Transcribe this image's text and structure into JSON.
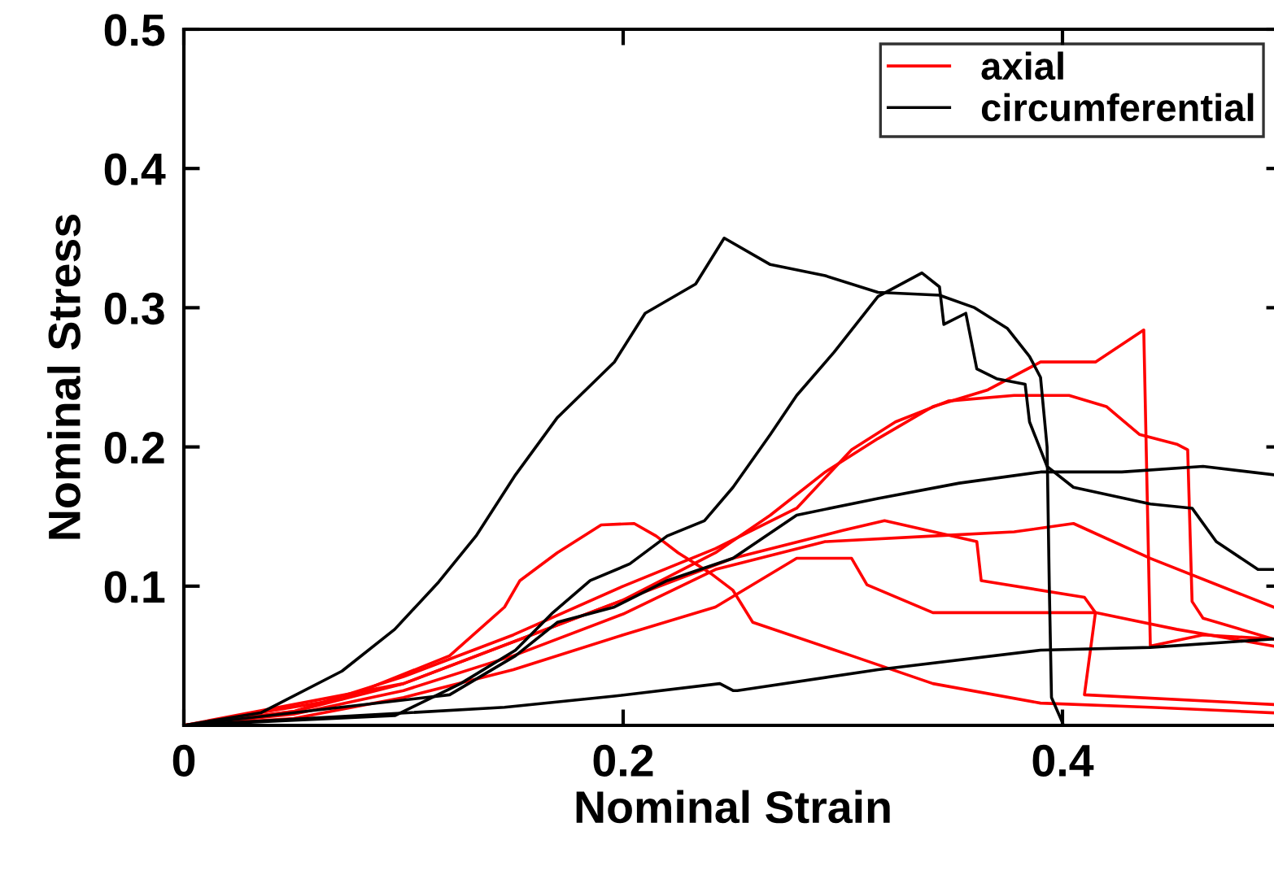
{
  "chart_data": {
    "type": "line",
    "xlabel": "Nominal Strain",
    "ylabel": "Nominal Stress",
    "xlim": [
      0,
      0.5
    ],
    "ylim": [
      0,
      0.5
    ],
    "xticks": [
      0,
      0.2,
      0.4
    ],
    "yticks": [
      0.1,
      0.2,
      0.3,
      0.4,
      0.5
    ],
    "grid": false,
    "legend": "top right",
    "marker": "none",
    "line_style": "solid",
    "series": [
      {
        "name": "axial",
        "color": "#ff0000",
        "x": [
          0,
          0.072,
          0.121,
          0.146,
          0.153,
          0.17,
          0.19,
          0.205,
          0.215,
          0.225,
          0.24,
          0.25,
          0.259,
          0.304,
          0.341,
          0.39,
          0.44,
          0.496
        ],
        "values": [
          0,
          0.019,
          0.05,
          0.085,
          0.104,
          0.124,
          0.144,
          0.145,
          0.136,
          0.124,
          0.109,
          0.097,
          0.074,
          0.05,
          0.03,
          0.016,
          0.013,
          0.009
        ]
      },
      {
        "color": "#ff0000",
        "x": [
          0,
          0.05,
          0.1,
          0.15,
          0.2,
          0.242,
          0.267,
          0.292,
          0.316,
          0.341,
          0.366,
          0.39,
          0.415,
          0.437,
          0.44,
          0.464,
          0.496
        ],
        "values": [
          0,
          0.01,
          0.03,
          0.06,
          0.09,
          0.124,
          0.151,
          0.182,
          0.206,
          0.229,
          0.241,
          0.261,
          0.261,
          0.284,
          0.057,
          0.065,
          0.062
        ]
      },
      {
        "color": "#ff0000",
        "x": [
          0,
          0.05,
          0.1,
          0.15,
          0.2,
          0.242,
          0.279,
          0.304,
          0.324,
          0.348,
          0.378,
          0.403,
          0.42,
          0.435,
          0.452,
          0.457,
          0.459,
          0.464,
          0.496
        ],
        "values": [
          0,
          0.01,
          0.035,
          0.065,
          0.1,
          0.127,
          0.156,
          0.198,
          0.218,
          0.233,
          0.237,
          0.237,
          0.229,
          0.209,
          0.202,
          0.198,
          0.089,
          0.077,
          0.062
        ]
      },
      {
        "color": "#ff0000",
        "x": [
          0,
          0.05,
          0.1,
          0.15,
          0.2,
          0.242,
          0.292,
          0.341,
          0.378,
          0.405,
          0.44,
          0.496
        ],
        "values": [
          0,
          0.008,
          0.025,
          0.05,
          0.08,
          0.112,
          0.132,
          0.136,
          0.139,
          0.145,
          0.12,
          0.085
        ]
      },
      {
        "color": "#ff0000",
        "x": [
          0,
          0.1,
          0.2,
          0.25,
          0.3,
          0.319,
          0.361,
          0.363,
          0.41,
          0.415,
          0.41,
          0.496
        ],
        "values": [
          0,
          0.03,
          0.09,
          0.12,
          0.14,
          0.147,
          0.132,
          0.104,
          0.092,
          0.081,
          0.022,
          0.015
        ]
      },
      {
        "color": "#ff0000",
        "x": [
          0,
          0.05,
          0.1,
          0.15,
          0.2,
          0.242,
          0.279,
          0.304,
          0.311,
          0.341,
          0.378,
          0.415,
          0.452,
          0.496
        ],
        "values": [
          0,
          0.005,
          0.02,
          0.04,
          0.065,
          0.085,
          0.12,
          0.12,
          0.101,
          0.081,
          0.081,
          0.081,
          0.069,
          0.057
        ]
      },
      {
        "name": "circumferential",
        "color": "#000000",
        "x": [
          0,
          0.035,
          0.072,
          0.096,
          0.116,
          0.133,
          0.151,
          0.17,
          0.196,
          0.21,
          0.233,
          0.246,
          0.267,
          0.292,
          0.316,
          0.344,
          0.36,
          0.375,
          0.385,
          0.39,
          0.393,
          0.394,
          0.395,
          0.4
        ],
        "values": [
          0,
          0.009,
          0.039,
          0.069,
          0.103,
          0.136,
          0.18,
          0.221,
          0.261,
          0.296,
          0.317,
          0.35,
          0.331,
          0.323,
          0.311,
          0.309,
          0.3,
          0.285,
          0.265,
          0.25,
          0.2,
          0.1,
          0.02,
          0.002
        ]
      },
      {
        "color": "#000000",
        "x": [
          0,
          0.096,
          0.126,
          0.151,
          0.168,
          0.185,
          0.203,
          0.22,
          0.237,
          0.25,
          0.267,
          0.279,
          0.296,
          0.316,
          0.336,
          0.344,
          0.346,
          0.356,
          0.361,
          0.37,
          0.383,
          0.385,
          0.393,
          0.405,
          0.44,
          0.459,
          0.47,
          0.489,
          0.496
        ],
        "values": [
          0,
          0.007,
          0.03,
          0.054,
          0.081,
          0.104,
          0.116,
          0.136,
          0.147,
          0.171,
          0.209,
          0.237,
          0.268,
          0.308,
          0.325,
          0.315,
          0.288,
          0.296,
          0.256,
          0.249,
          0.245,
          0.218,
          0.186,
          0.171,
          0.159,
          0.156,
          0.132,
          0.112,
          0.112
        ]
      },
      {
        "color": "#000000",
        "x": [
          0,
          0.121,
          0.151,
          0.17,
          0.196,
          0.22,
          0.25,
          0.279,
          0.316,
          0.353,
          0.39,
          0.427,
          0.464,
          0.496
        ],
        "values": [
          0,
          0.022,
          0.05,
          0.074,
          0.085,
          0.104,
          0.12,
          0.151,
          0.163,
          0.174,
          0.182,
          0.182,
          0.186,
          0.18
        ]
      },
      {
        "color": "#000000",
        "x": [
          0,
          0.146,
          0.196,
          0.244,
          0.25,
          0.252,
          0.316,
          0.39,
          0.44,
          0.496
        ],
        "values": [
          0,
          0.013,
          0.021,
          0.03,
          0.025,
          0.025,
          0.04,
          0.054,
          0.056,
          0.062
        ]
      }
    ]
  }
}
